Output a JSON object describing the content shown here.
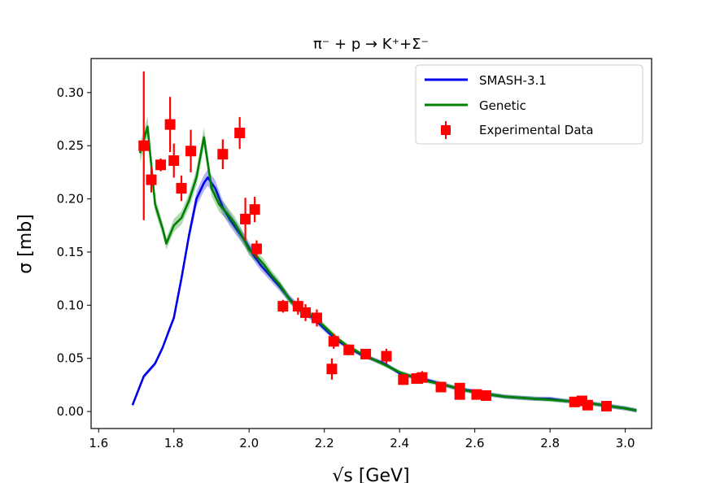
{
  "chart_data": {
    "type": "line",
    "title": "π⁻ + p → K⁺+Σ⁻",
    "xlabel": "√s [GeV]",
    "ylabel": "σ [mb]",
    "xlim": [
      1.58,
      3.07
    ],
    "ylim": [
      -0.016,
      0.332
    ],
    "xticks": [
      "1.6",
      "1.8",
      "2.0",
      "2.2",
      "2.4",
      "2.6",
      "2.8",
      "3.0"
    ],
    "yticks": [
      "0.00",
      "0.05",
      "0.10",
      "0.15",
      "0.20",
      "0.25",
      "0.30"
    ],
    "grid": false,
    "legend_position": "top-right",
    "series": [
      {
        "name": "SMASH-3.1",
        "color": "#0000ee",
        "x": [
          1.69,
          1.72,
          1.75,
          1.77,
          1.79,
          1.8,
          1.82,
          1.84,
          1.86,
          1.88,
          1.89,
          1.91,
          1.93,
          1.95,
          1.97,
          1.99,
          2.01,
          2.03,
          2.05,
          2.08,
          2.11,
          2.14,
          2.17,
          2.2,
          2.23,
          2.26,
          2.3,
          2.33,
          2.36,
          2.4,
          2.44,
          2.48,
          2.52,
          2.56,
          2.6,
          2.64,
          2.68,
          2.72,
          2.76,
          2.8,
          2.84,
          2.88,
          2.92,
          2.96,
          3.0,
          3.03
        ],
        "y": [
          0.006,
          0.033,
          0.045,
          0.06,
          0.079,
          0.088,
          0.125,
          0.165,
          0.2,
          0.215,
          0.22,
          0.21,
          0.192,
          0.18,
          0.17,
          0.16,
          0.148,
          0.138,
          0.13,
          0.118,
          0.105,
          0.095,
          0.088,
          0.078,
          0.068,
          0.061,
          0.053,
          0.049,
          0.045,
          0.036,
          0.032,
          0.029,
          0.025,
          0.021,
          0.019,
          0.016,
          0.014,
          0.013,
          0.012,
          0.012,
          0.01,
          0.009,
          0.007,
          0.005,
          0.003,
          0.001
        ]
      },
      {
        "name": "Genetic",
        "color": "#008000",
        "x": [
          1.71,
          1.73,
          1.75,
          1.77,
          1.78,
          1.8,
          1.82,
          1.84,
          1.86,
          1.88,
          1.9,
          1.92,
          1.94,
          1.96,
          1.98,
          2.0,
          2.02,
          2.04,
          2.06,
          2.08,
          2.11,
          2.14,
          2.17,
          2.2,
          2.23,
          2.26,
          2.3,
          2.33,
          2.36,
          2.4,
          2.44,
          2.48,
          2.52,
          2.56,
          2.6,
          2.64,
          2.68,
          2.72,
          2.76,
          2.8,
          2.84,
          2.88,
          2.92,
          2.96,
          3.0,
          3.03
        ],
        "y": [
          0.243,
          0.268,
          0.195,
          0.172,
          0.158,
          0.175,
          0.182,
          0.198,
          0.22,
          0.258,
          0.21,
          0.195,
          0.187,
          0.178,
          0.166,
          0.152,
          0.146,
          0.138,
          0.128,
          0.12,
          0.104,
          0.094,
          0.09,
          0.08,
          0.07,
          0.062,
          0.054,
          0.049,
          0.044,
          0.037,
          0.032,
          0.028,
          0.025,
          0.021,
          0.018,
          0.016,
          0.014,
          0.013,
          0.012,
          0.011,
          0.01,
          0.009,
          0.007,
          0.005,
          0.003,
          0.001
        ]
      }
    ],
    "experimental": {
      "name": "Experimental Data",
      "color": "#ff0000",
      "points": [
        {
          "x": 1.72,
          "y": 0.25,
          "err": 0.07
        },
        {
          "x": 1.74,
          "y": 0.218,
          "err": 0.012
        },
        {
          "x": 1.765,
          "y": 0.232,
          "err": 0.006
        },
        {
          "x": 1.79,
          "y": 0.27,
          "err": 0.026
        },
        {
          "x": 1.8,
          "y": 0.236,
          "err": 0.016
        },
        {
          "x": 1.82,
          "y": 0.21,
          "err": 0.012
        },
        {
          "x": 1.845,
          "y": 0.245,
          "err": 0.02
        },
        {
          "x": 1.93,
          "y": 0.242,
          "err": 0.014
        },
        {
          "x": 1.975,
          "y": 0.262,
          "err": 0.015
        },
        {
          "x": 1.99,
          "y": 0.181,
          "err": 0.02
        },
        {
          "x": 2.015,
          "y": 0.19,
          "err": 0.012
        },
        {
          "x": 2.02,
          "y": 0.153,
          "err": 0.008
        },
        {
          "x": 2.09,
          "y": 0.099,
          "err": 0.006
        },
        {
          "x": 2.13,
          "y": 0.099,
          "err": 0.008
        },
        {
          "x": 2.15,
          "y": 0.093,
          "err": 0.008
        },
        {
          "x": 2.18,
          "y": 0.088,
          "err": 0.008
        },
        {
          "x": 2.22,
          "y": 0.04,
          "err": 0.01
        },
        {
          "x": 2.225,
          "y": 0.066,
          "err": 0.007
        },
        {
          "x": 2.265,
          "y": 0.058,
          "err": 0.005
        },
        {
          "x": 2.31,
          "y": 0.054,
          "err": 0.005
        },
        {
          "x": 2.365,
          "y": 0.052,
          "err": 0.007
        },
        {
          "x": 2.41,
          "y": 0.03,
          "err": 0.004
        },
        {
          "x": 2.445,
          "y": 0.031,
          "err": 0.004
        },
        {
          "x": 2.46,
          "y": 0.032,
          "err": 0.006
        },
        {
          "x": 2.51,
          "y": 0.023,
          "err": 0.004
        },
        {
          "x": 2.56,
          "y": 0.022,
          "err": 0.004
        },
        {
          "x": 2.56,
          "y": 0.016,
          "err": 0.003
        },
        {
          "x": 2.605,
          "y": 0.016,
          "err": 0.003
        },
        {
          "x": 2.63,
          "y": 0.015,
          "err": 0.003
        },
        {
          "x": 2.865,
          "y": 0.009,
          "err": 0.002
        },
        {
          "x": 2.885,
          "y": 0.01,
          "err": 0.002
        },
        {
          "x": 2.9,
          "y": 0.006,
          "err": 0.002
        },
        {
          "x": 2.95,
          "y": 0.005,
          "err": 0.002
        }
      ]
    }
  }
}
